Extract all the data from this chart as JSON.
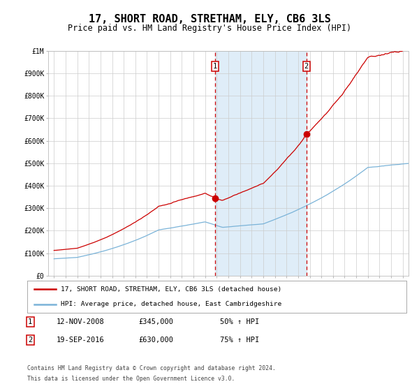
{
  "title": "17, SHORT ROAD, STRETHAM, ELY, CB6 3LS",
  "subtitle": "Price paid vs. HM Land Registry's House Price Index (HPI)",
  "title_fontsize": 11,
  "subtitle_fontsize": 8.5,
  "x_start_year": 1995,
  "x_end_year": 2025,
  "y_min": 0,
  "y_max": 1000000,
  "y_ticks": [
    0,
    100000,
    200000,
    300000,
    400000,
    500000,
    600000,
    700000,
    800000,
    900000,
    1000000
  ],
  "y_tick_labels": [
    "£0",
    "£100K",
    "£200K",
    "£300K",
    "£400K",
    "£500K",
    "£600K",
    "£700K",
    "£800K",
    "£900K",
    "£1M"
  ],
  "hpi_color": "#7ab3d8",
  "price_color": "#cc0000",
  "sale1_date": 2008.87,
  "sale1_price": 345000,
  "sale2_date": 2016.72,
  "sale2_price": 630000,
  "shading_color": "#daeaf7",
  "dashed_line_color": "#cc0000",
  "legend_line1": "17, SHORT ROAD, STRETHAM, ELY, CB6 3LS (detached house)",
  "legend_line2": "HPI: Average price, detached house, East Cambridgeshire",
  "footnote_line1": "Contains HM Land Registry data © Crown copyright and database right 2024.",
  "footnote_line2": "This data is licensed under the Open Government Licence v3.0.",
  "table_row1_num": "1",
  "table_row1_date": "12-NOV-2008",
  "table_row1_price": "£345,000",
  "table_row1_hpi": "50% ↑ HPI",
  "table_row2_num": "2",
  "table_row2_date": "19-SEP-2016",
  "table_row2_price": "£630,000",
  "table_row2_hpi": "75% ↑ HPI",
  "background_color": "#ffffff",
  "grid_color": "#cccccc"
}
